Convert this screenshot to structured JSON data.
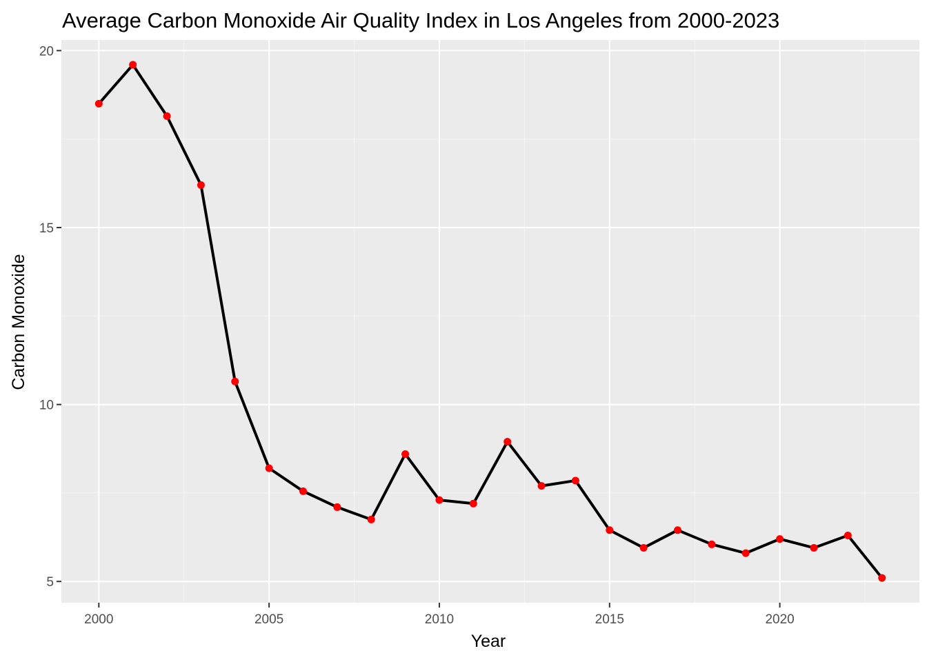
{
  "chart_data": {
    "type": "line",
    "title": "Average Carbon Monoxide Air Quality Index in Los Angeles from 2000-2023",
    "xlabel": "Year",
    "ylabel": "Carbon Monoxide",
    "xlim": [
      1998.9,
      2024.1
    ],
    "ylim": [
      4.4,
      20.3
    ],
    "x_ticks": [
      2000,
      2005,
      2010,
      2015,
      2020
    ],
    "y_ticks": [
      5,
      10,
      15,
      20
    ],
    "grid": true,
    "legend": "none",
    "colors": {
      "panel_background": "#ebebeb",
      "grid_major": "#ffffff",
      "grid_minor": "#f5f5f5",
      "line": "#000000",
      "points": "#ff0000",
      "tick_text": "#4d4d4d",
      "tick_marks": "#333333"
    },
    "series": [
      {
        "x": [
          2000,
          2001,
          2002,
          2003,
          2004,
          2005,
          2006,
          2007,
          2008,
          2009,
          2010,
          2011,
          2012,
          2013,
          2014,
          2015,
          2016,
          2017,
          2018,
          2019,
          2020,
          2021,
          2022,
          2023
        ],
        "values": [
          18.5,
          19.6,
          18.15,
          16.2,
          10.65,
          8.2,
          7.55,
          7.1,
          6.75,
          8.6,
          7.3,
          7.2,
          8.95,
          7.7,
          7.85,
          6.45,
          5.95,
          6.45,
          6.05,
          5.8,
          6.2,
          5.95,
          6.3,
          5.1
        ]
      }
    ]
  }
}
